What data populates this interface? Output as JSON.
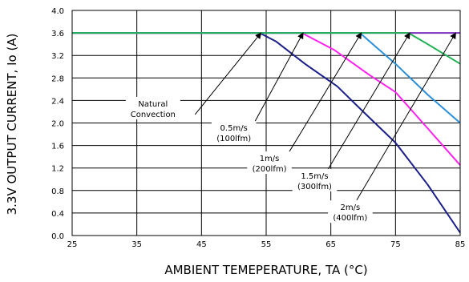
{
  "chart_data": {
    "type": "line",
    "xlabel": "AMBIENT TEMEPERATURE, TA (°C)",
    "ylabel": "3.3V OUTPUT CURRENT, Io (A)",
    "xlim": [
      25,
      85
    ],
    "ylim": [
      0.0,
      4.0
    ],
    "x_ticks": [
      "25",
      "35",
      "45",
      "55",
      "65",
      "75",
      "85"
    ],
    "y_ticks": [
      "0.0",
      "0.4",
      "0.8",
      "1.2",
      "1.6",
      "2.0",
      "2.4",
      "2.8",
      "3.2",
      "3.6",
      "4.0"
    ],
    "grid": true,
    "series": [
      {
        "color": "#7b2fbe",
        "points": [
          [
            25,
            3.6
          ],
          [
            85,
            3.6
          ]
        ]
      },
      {
        "color": "#1a1f8c",
        "points": [
          [
            25,
            3.6
          ],
          [
            54,
            3.6
          ],
          [
            56.5,
            3.45
          ],
          [
            61,
            3.05
          ],
          [
            66,
            2.65
          ],
          [
            70,
            2.2
          ],
          [
            75,
            1.65
          ],
          [
            80,
            0.9
          ],
          [
            85,
            0.05
          ]
        ]
      },
      {
        "color": "#ff22ee",
        "points": [
          [
            25,
            3.6
          ],
          [
            60.5,
            3.6
          ],
          [
            65.5,
            3.3
          ],
          [
            71,
            2.85
          ],
          [
            75,
            2.55
          ],
          [
            80,
            1.9
          ],
          [
            85,
            1.25
          ]
        ]
      },
      {
        "color": "#2a8fd8",
        "points": [
          [
            25,
            3.6
          ],
          [
            69.5,
            3.6
          ],
          [
            72,
            3.35
          ],
          [
            75,
            3.05
          ],
          [
            80,
            2.5
          ],
          [
            85,
            2.0
          ]
        ]
      },
      {
        "color": "#22b255",
        "points": [
          [
            25,
            3.6
          ],
          [
            77,
            3.6
          ],
          [
            80,
            3.4
          ],
          [
            85,
            3.05
          ]
        ]
      }
    ],
    "annotations": [
      {
        "lines": [
          "Natural",
          "Convection"
        ],
        "text_at": [
          37.5,
          2.25
        ],
        "arrow_from": [
          44,
          2.15
        ],
        "arrow_to": [
          54.2,
          3.6
        ]
      },
      {
        "lines": [
          "0.5m/s",
          "(100lfm)"
        ],
        "text_at": [
          50,
          1.82
        ],
        "arrow_from": [
          53,
          1.97
        ],
        "arrow_to": [
          60.7,
          3.6
        ]
      },
      {
        "lines": [
          "1m/s",
          "(200lfm)"
        ],
        "text_at": [
          55.5,
          1.28
        ],
        "arrow_from": [
          58,
          1.38
        ],
        "arrow_to": [
          69.7,
          3.6
        ]
      },
      {
        "lines": [
          "1.5m/s",
          "(300lfm)"
        ],
        "text_at": [
          62.5,
          0.97
        ],
        "arrow_from": [
          64,
          1.07
        ],
        "arrow_to": [
          77.2,
          3.6
        ]
      },
      {
        "lines": [
          "2m/s",
          "(400lfm)"
        ],
        "text_at": [
          68,
          0.41
        ],
        "arrow_from": [
          69,
          0.63
        ],
        "arrow_to": [
          84.3,
          3.6
        ]
      }
    ]
  }
}
